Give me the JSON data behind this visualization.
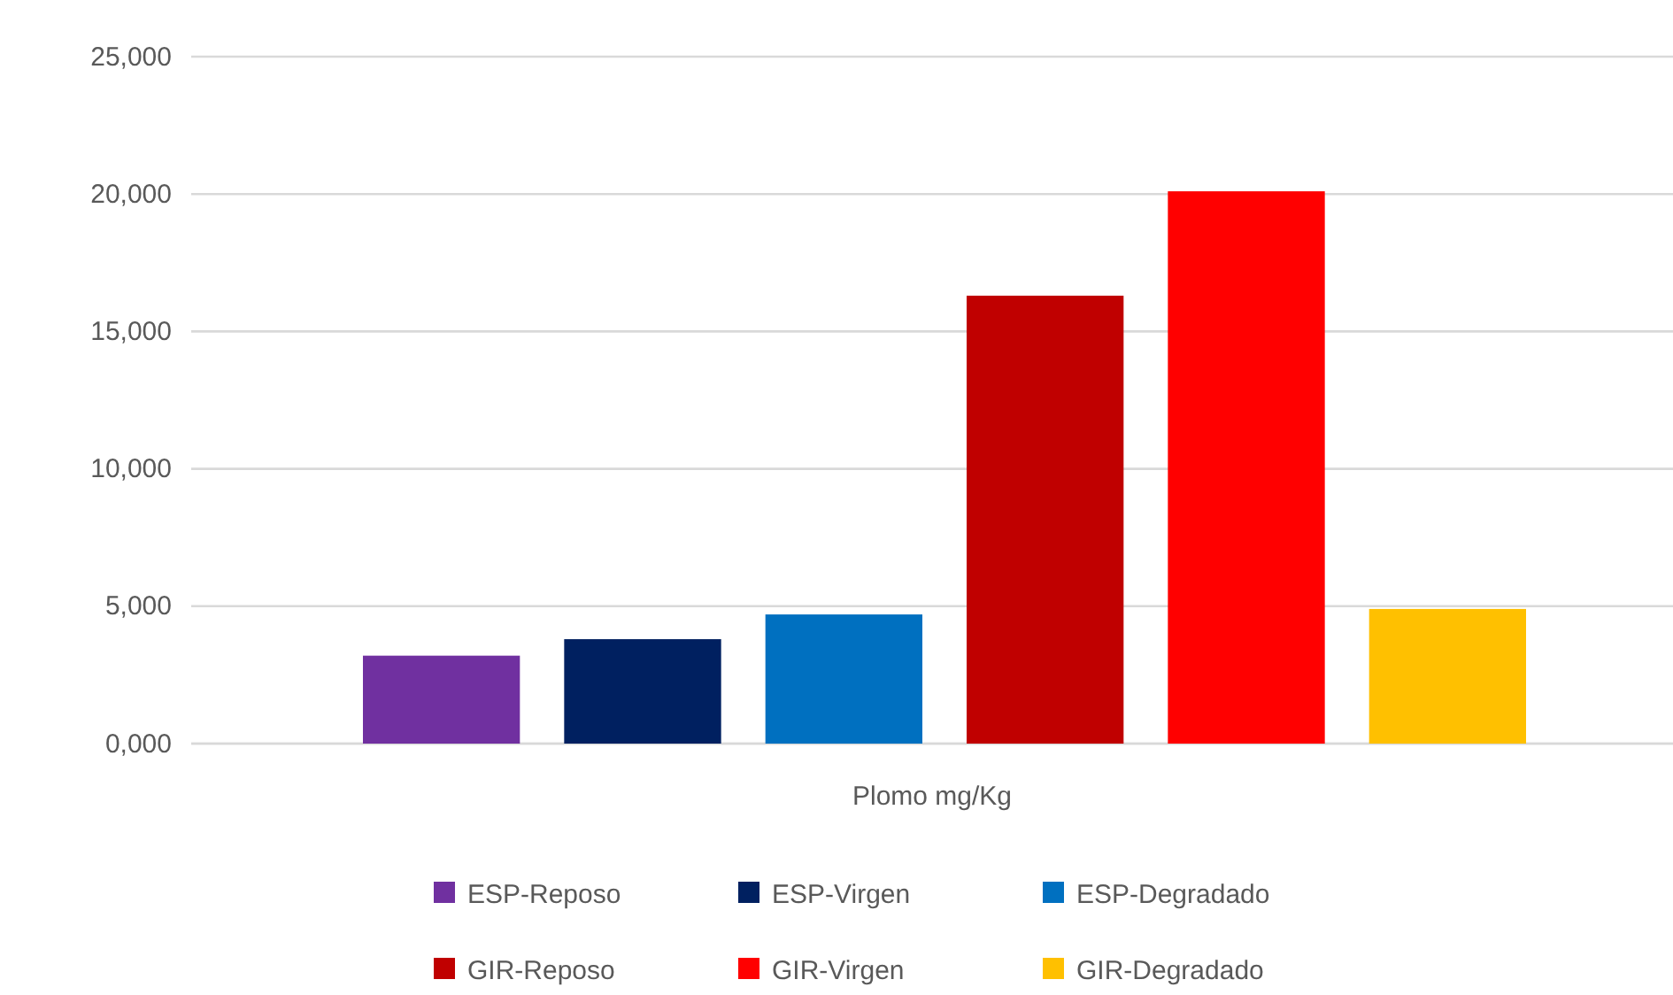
{
  "chart_data": {
    "type": "bar",
    "categories": [
      "Plomo mg/Kg"
    ],
    "series": [
      {
        "name": "ESP-Reposo",
        "color": "#7030a0",
        "values": [
          3200
        ]
      },
      {
        "name": "ESP-Virgen",
        "color": "#002060",
        "values": [
          3800
        ]
      },
      {
        "name": "ESP-Degradado",
        "color": "#0070c0",
        "values": [
          4700
        ]
      },
      {
        "name": "GIR-Reposo",
        "color": "#c00000",
        "values": [
          16300
        ]
      },
      {
        "name": "GIR-Virgen",
        "color": "#ff0000",
        "values": [
          20100
        ]
      },
      {
        "name": "GIR-Degradado",
        "color": "#ffc000",
        "values": [
          4900
        ]
      }
    ],
    "ylim": [
      0,
      25000
    ],
    "yticks": [
      {
        "value": 0,
        "label": "0,000"
      },
      {
        "value": 5000,
        "label": "5,000"
      },
      {
        "value": 10000,
        "label": "10,000"
      },
      {
        "value": 15000,
        "label": "15,000"
      },
      {
        "value": 20000,
        "label": "20,000"
      },
      {
        "value": 25000,
        "label": "25,000"
      }
    ],
    "grid": "y",
    "legend": "bottom"
  }
}
